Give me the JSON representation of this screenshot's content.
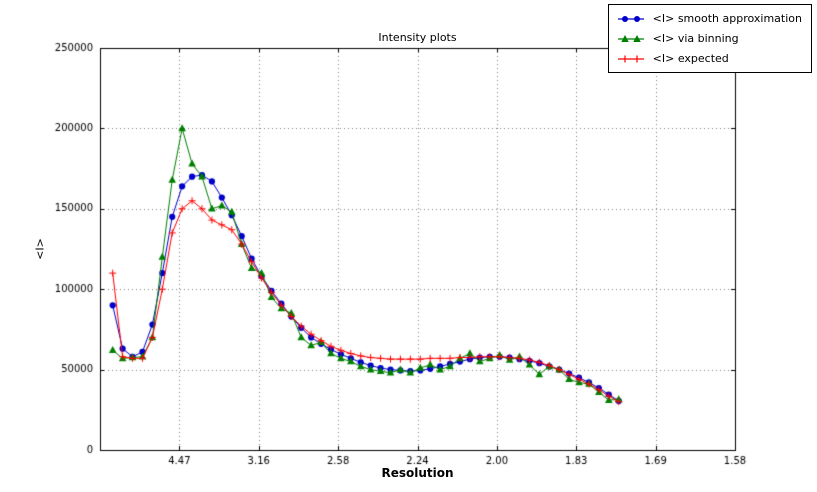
{
  "chart_data": {
    "type": "line",
    "title": "Intensity plots",
    "xlabel": "Resolution",
    "ylabel": "<I>",
    "grid": true,
    "grid_style": "dotted",
    "grid_color": "#7f7f7f",
    "legend_position": "upper right",
    "x_axis": {
      "range": [
        0.0,
        0.4
      ],
      "tick_positions": [
        0.05,
        0.1,
        0.15,
        0.2,
        0.25,
        0.3,
        0.35,
        0.4
      ],
      "tick_labels": [
        "4.47",
        "3.16",
        "2.58",
        "2.24",
        "2.00",
        "1.83",
        "1.69",
        "1.58"
      ]
    },
    "y_axis": {
      "range": [
        0,
        250000
      ],
      "tick_values": [
        0,
        50000,
        100000,
        150000,
        200000,
        250000
      ],
      "tick_labels": [
        "0",
        "50000",
        "100000",
        "150000",
        "200000",
        "250000"
      ]
    },
    "x": [
      0.008,
      0.01425,
      0.0205,
      0.02675,
      0.033,
      0.03925,
      0.0455,
      0.05175,
      0.058,
      0.06425,
      0.0705,
      0.07675,
      0.083,
      0.08925,
      0.0955,
      0.10175,
      0.108,
      0.11425,
      0.1205,
      0.12675,
      0.133,
      0.13925,
      0.1455,
      0.15175,
      0.158,
      0.16425,
      0.1705,
      0.17675,
      0.183,
      0.18925,
      0.1955,
      0.20175,
      0.208,
      0.21425,
      0.2205,
      0.22675,
      0.233,
      0.23925,
      0.2455,
      0.25175,
      0.258,
      0.26425,
      0.2705,
      0.27675,
      0.283,
      0.28925,
      0.2955,
      0.30175,
      0.308,
      0.31425,
      0.3205,
      0.32675
    ],
    "series": [
      {
        "name": "<I> smooth approximation",
        "color": "#0000cc",
        "marker": "circle",
        "values": [
          90000,
          63000,
          58000,
          61000,
          78000,
          110000,
          145000,
          164000,
          170000,
          171000,
          167000,
          157000,
          146000,
          133000,
          119000,
          108000,
          99000,
          91000,
          83000,
          76000,
          70000,
          66000,
          62500,
          59500,
          57000,
          54500,
          52500,
          51000,
          50000,
          49500,
          49000,
          49500,
          50500,
          52000,
          53500,
          55000,
          56500,
          57500,
          58000,
          58000,
          57500,
          56500,
          55500,
          54000,
          52000,
          50000,
          47500,
          45000,
          42000,
          38500,
          34500,
          30500
        ]
      },
      {
        "name": "<I> via binning",
        "color": "#007f00",
        "marker": "triangle-up",
        "values": [
          62000,
          57000,
          57500,
          58000,
          70000,
          120000,
          168000,
          200000,
          178000,
          170000,
          150000,
          152000,
          148000,
          128000,
          113000,
          110000,
          95000,
          88000,
          85000,
          70000,
          65000,
          67000,
          60000,
          57000,
          55000,
          52000,
          50000,
          49000,
          48000,
          50000,
          48000,
          51000,
          53000,
          50000,
          52000,
          57000,
          60000,
          55000,
          57000,
          59000,
          56000,
          58000,
          53000,
          47000,
          52000,
          50000,
          44000,
          42000,
          41000,
          36000,
          31000,
          31500
        ]
      },
      {
        "name": "<I> expected",
        "color": "#ff0000",
        "marker": "plus",
        "values": [
          110000,
          58000,
          57000,
          57000,
          70000,
          100000,
          135000,
          150000,
          155000,
          150000,
          143000,
          140000,
          137000,
          128000,
          117000,
          107000,
          98000,
          90000,
          83000,
          77000,
          72000,
          68000,
          64500,
          62000,
          60000,
          58500,
          57500,
          57000,
          56500,
          56500,
          56500,
          56500,
          57000,
          57000,
          57000,
          57500,
          57500,
          58000,
          58000,
          58000,
          57500,
          57000,
          56000,
          54500,
          52500,
          50000,
          47000,
          44000,
          41000,
          37500,
          33500,
          30000
        ]
      }
    ]
  }
}
